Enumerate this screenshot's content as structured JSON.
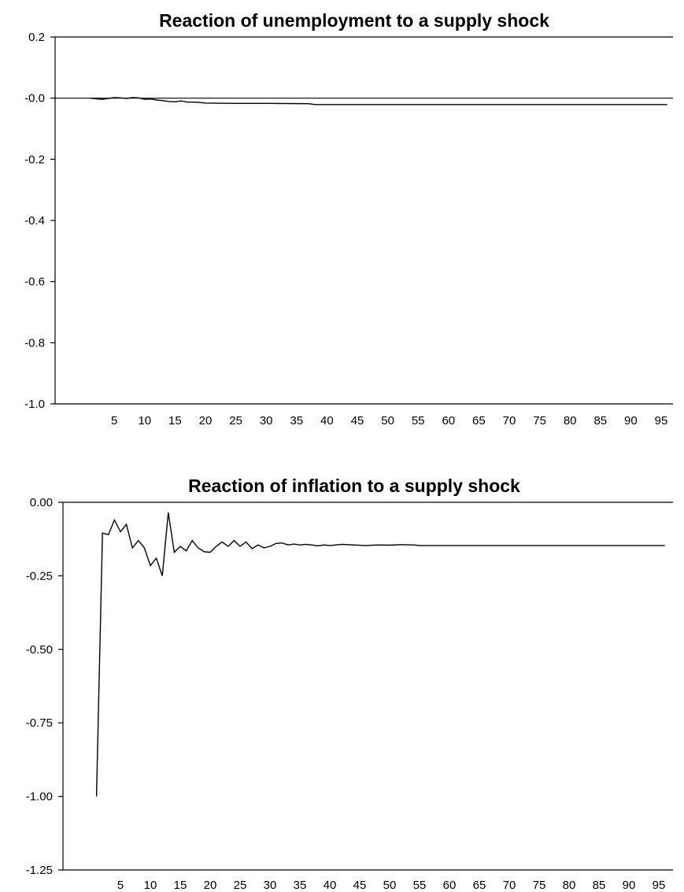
{
  "chart_data": [
    {
      "type": "line",
      "title": "Reaction of unemployment to a supply shock",
      "xlabel": "",
      "ylabel": "",
      "xlim": [
        1,
        96
      ],
      "ylim": [
        -1.0,
        0.2
      ],
      "grid": false,
      "zero_line": true,
      "x_ticks": [
        5,
        10,
        15,
        20,
        25,
        30,
        35,
        40,
        45,
        50,
        55,
        60,
        65,
        70,
        75,
        80,
        85,
        90,
        95
      ],
      "y_ticks": [
        0.2,
        0.0,
        -0.2,
        -0.4,
        -0.6,
        -0.8,
        -1.0
      ],
      "y_tick_labels": [
        "0.2",
        "-0.0",
        "-0.2",
        "-0.4",
        "-0.6",
        "-0.8",
        "-1.0"
      ],
      "series": [
        {
          "x": [
            1,
            2,
            3,
            4,
            5,
            6,
            7,
            8,
            9,
            10,
            11,
            12,
            13,
            14,
            15,
            16,
            17,
            18,
            19,
            20,
            25,
            30,
            37,
            38,
            45,
            50,
            55,
            60,
            70,
            80,
            90,
            96
          ],
          "values": [
            0.0,
            -0.002,
            -0.004,
            -0.001,
            0.002,
            0.001,
            -0.001,
            0.002,
            0.001,
            -0.004,
            -0.003,
            -0.006,
            -0.008,
            -0.011,
            -0.012,
            -0.009,
            -0.013,
            -0.013,
            -0.014,
            -0.016,
            -0.017,
            -0.017,
            -0.018,
            -0.021,
            -0.021,
            -0.021,
            -0.021,
            -0.021,
            -0.021,
            -0.021,
            -0.021,
            -0.021
          ]
        }
      ]
    },
    {
      "type": "line",
      "title": "Reaction of inflation to a supply shock",
      "xlabel": "",
      "ylabel": "",
      "xlim": [
        1,
        96
      ],
      "ylim": [
        -1.25,
        0.0
      ],
      "grid": false,
      "zero_line": true,
      "x_ticks": [
        5,
        10,
        15,
        20,
        25,
        30,
        35,
        40,
        45,
        50,
        55,
        60,
        65,
        70,
        75,
        80,
        85,
        90,
        95
      ],
      "y_ticks": [
        0.0,
        -0.25,
        -0.5,
        -0.75,
        -1.0,
        -1.25
      ],
      "y_tick_labels": [
        "0.00",
        "-0.25",
        "-0.50",
        "-0.75",
        "-1.00",
        "-1.25"
      ],
      "series": [
        {
          "x": [
            1,
            2,
            3,
            4,
            5,
            6,
            7,
            8,
            9,
            10,
            11,
            12,
            13,
            14,
            15,
            16,
            17,
            18,
            19,
            20,
            21,
            22,
            23,
            24,
            25,
            26,
            27,
            28,
            29,
            30,
            31,
            32,
            33,
            34,
            35,
            36,
            37,
            38,
            39,
            40,
            42,
            44,
            46,
            48,
            50,
            52,
            54,
            55,
            60,
            70,
            80,
            90,
            96
          ],
          "values": [
            -1.0,
            -0.105,
            -0.11,
            -0.06,
            -0.1,
            -0.075,
            -0.155,
            -0.13,
            -0.155,
            -0.215,
            -0.19,
            -0.25,
            -0.035,
            -0.17,
            -0.15,
            -0.165,
            -0.13,
            -0.155,
            -0.168,
            -0.17,
            -0.15,
            -0.135,
            -0.15,
            -0.13,
            -0.15,
            -0.135,
            -0.158,
            -0.145,
            -0.155,
            -0.15,
            -0.14,
            -0.138,
            -0.145,
            -0.142,
            -0.145,
            -0.143,
            -0.145,
            -0.148,
            -0.145,
            -0.147,
            -0.143,
            -0.145,
            -0.147,
            -0.145,
            -0.146,
            -0.144,
            -0.145,
            -0.147,
            -0.147,
            -0.147,
            -0.147,
            -0.147,
            -0.147
          ]
        }
      ]
    }
  ]
}
